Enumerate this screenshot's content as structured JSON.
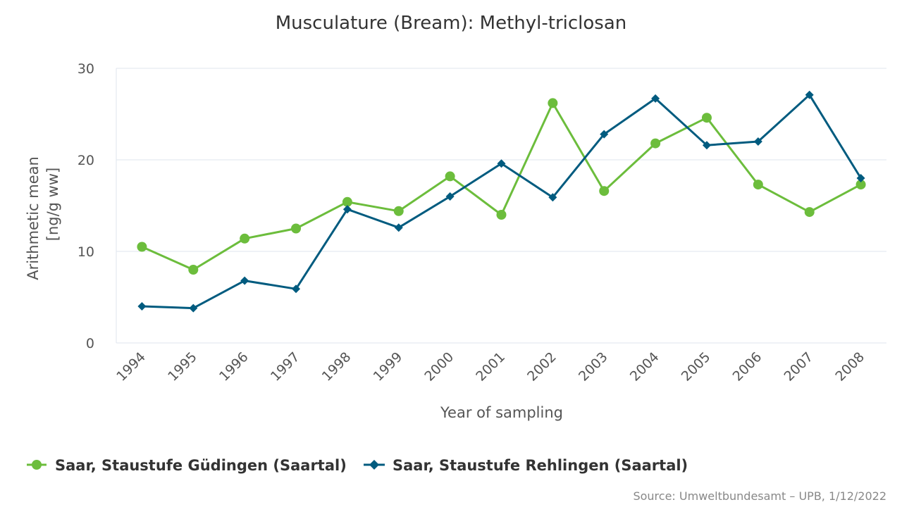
{
  "chart_data": {
    "type": "line",
    "title": "Musculature (Bream): Methyl-triclosan",
    "xlabel": "Year of sampling",
    "ylabel_line1": "Arithmetic mean",
    "ylabel_line2": "[ng/g ww]",
    "ylim": [
      0,
      30
    ],
    "yticks": [
      0,
      10,
      20,
      30
    ],
    "grid": true,
    "legend_position": "bottom-left",
    "categories": [
      "1994",
      "1995",
      "1996",
      "1997",
      "1998",
      "1999",
      "2000",
      "2001",
      "2002",
      "2003",
      "2004",
      "2005",
      "2006",
      "2007",
      "2008"
    ],
    "series": [
      {
        "name": "Saar, Staustufe Güdingen (Saartal)",
        "color": "#6cbd3c",
        "marker": "circle",
        "values": [
          10.5,
          8.0,
          11.4,
          12.5,
          15.4,
          14.4,
          18.2,
          14.0,
          26.2,
          16.6,
          21.8,
          24.6,
          17.3,
          14.3,
          17.3
        ]
      },
      {
        "name": "Saar, Staustufe Rehlingen (Saartal)",
        "color": "#005b7f",
        "marker": "diamond",
        "values": [
          4.0,
          3.8,
          6.8,
          5.9,
          14.6,
          12.6,
          16.0,
          19.6,
          15.9,
          22.8,
          26.7,
          21.6,
          22.0,
          27.1,
          18.0
        ]
      }
    ],
    "source": "Source: Umweltbundesamt – UPB, 1/12/2022"
  }
}
